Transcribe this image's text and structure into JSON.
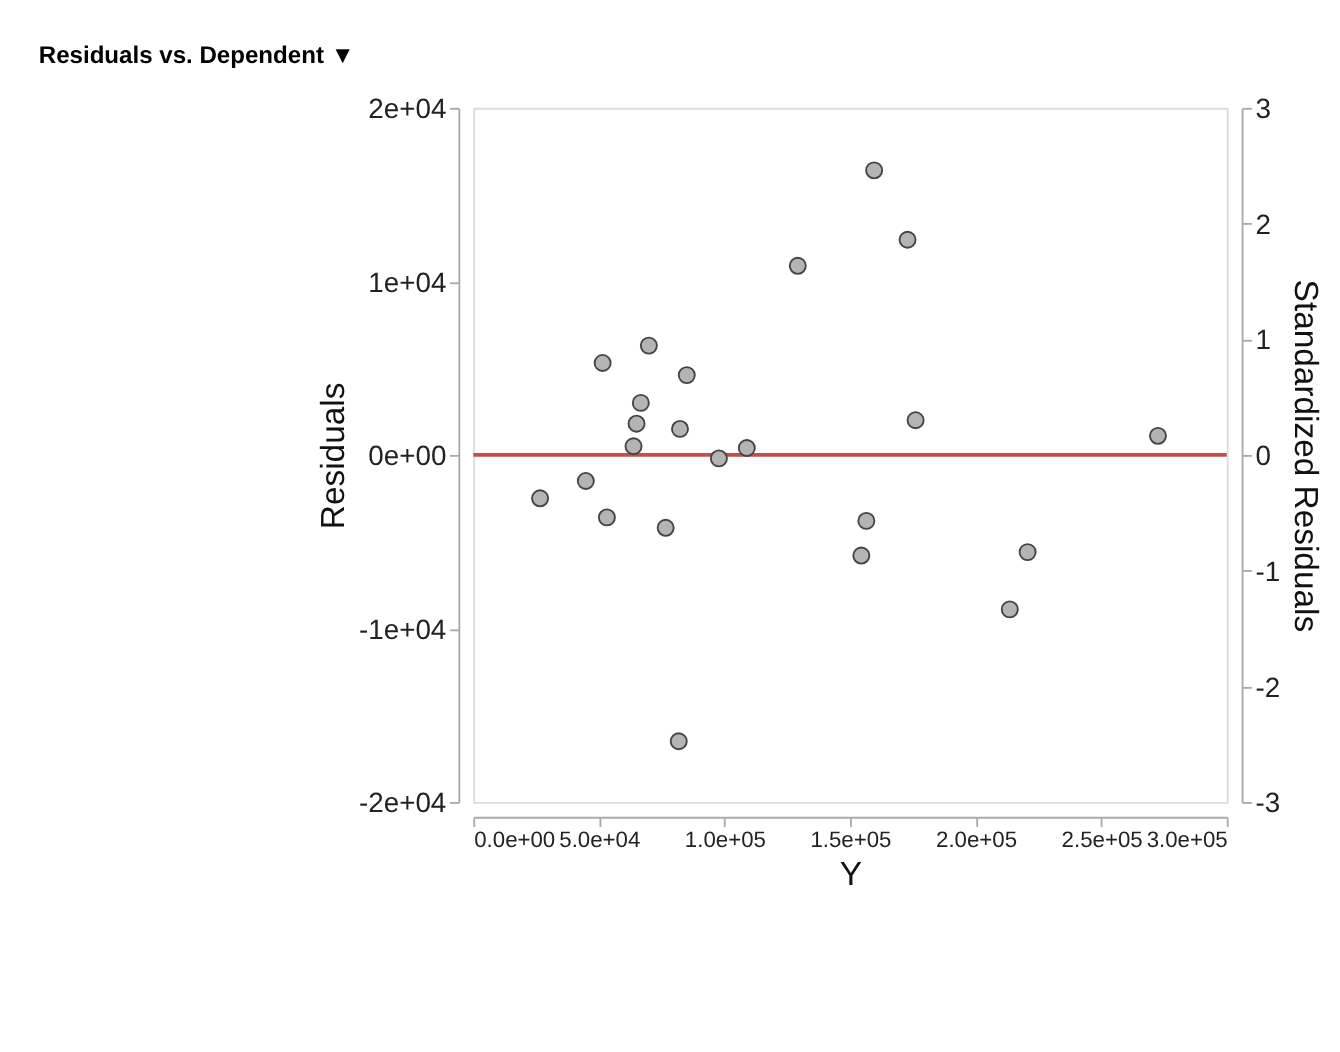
{
  "chart_data": {
    "type": "scatter",
    "title": "Residuals vs. Dependent ▼",
    "xlabel": "Y",
    "ylabel": "Residuals",
    "y2label": "Standardized Residuals",
    "x": [
      26600,
      44800,
      53200,
      51500,
      63800,
      65000,
      66700,
      69900,
      76600,
      82300,
      85000,
      81800,
      97800,
      108900,
      129200,
      159600,
      172900,
      176100,
      272600,
      156500,
      154500,
      220700,
      213600
    ],
    "series": [
      {
        "color": "#b4b4b4",
        "values": [
          -2500,
          -1500,
          -3600,
          5300,
          500,
          1800,
          3000,
          6300,
          -4200,
          1500,
          4600,
          -16500,
          -200,
          400,
          10900,
          16400,
          12400,
          2000,
          1100,
          -3800,
          -5800,
          -5600,
          -8900
        ]
      }
    ],
    "marker": "circle",
    "xlim": [
      0,
      300000
    ],
    "xticks": [
      {
        "value": 0,
        "label": "0.0e+00"
      },
      {
        "value": 50000,
        "label": "5.0e+04"
      },
      {
        "value": 100000,
        "label": "1.0e+05"
      },
      {
        "value": 150000,
        "label": "1.5e+05"
      },
      {
        "value": 200000,
        "label": "2.0e+05"
      },
      {
        "value": 250000,
        "label": "2.5e+05"
      },
      {
        "value": 300000,
        "label": "3.0e+05"
      }
    ],
    "ylim": [
      -20000,
      20000
    ],
    "yticks": [
      {
        "value": -20000,
        "label": "-2e+04"
      },
      {
        "value": -10000,
        "label": "-1e+04"
      },
      {
        "value": 0,
        "label": "0e+00"
      },
      {
        "value": 10000,
        "label": "1e+04"
      },
      {
        "value": 20000,
        "label": "2e+04"
      }
    ],
    "y2lim": [
      -3,
      3
    ],
    "y2ticks": [
      -3,
      -2,
      -1,
      0,
      1,
      2,
      3
    ],
    "ref_lines": [
      {
        "axis": "y2",
        "value": 0,
        "color": "#c0504d"
      }
    ],
    "grid": false
  }
}
